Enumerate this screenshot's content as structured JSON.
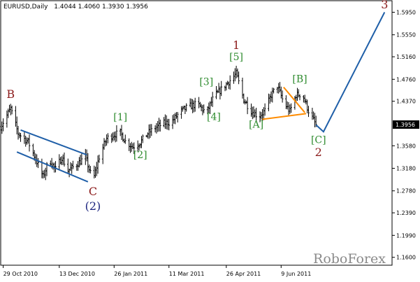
{
  "header": {
    "symbol": "EURUSD,Daily",
    "ohlc": "1.4044 1.4060 1.3930 1.3956"
  },
  "watermark": "RoboForex",
  "colors": {
    "bars": "#000000",
    "wave_major": "#8b1a1a",
    "wave_minor": "#2e8b2e",
    "wave_intermediate": "#1a237e",
    "trendline": "#1f5fa8",
    "triangle": "#ff8c00",
    "price_box": "#000000"
  },
  "chart_data": {
    "type": "ohlc",
    "xlabel": "",
    "ylabel": "",
    "ylim": [
      1.146,
      1.6155
    ],
    "x_range": [
      "2010-10-27",
      "2011-09-06"
    ],
    "price_axis_ticks": [
      "1.5950",
      "1.5550",
      "1.5160",
      "1.4760",
      "1.4370",
      "1.3580",
      "1.3180",
      "1.2780",
      "1.2390",
      "1.1990",
      "1.1600"
    ],
    "current_price": "1.3956",
    "date_ticks": [
      {
        "label": "29 Oct 2010",
        "date": "2010-10-29"
      },
      {
        "label": "13 Dec 2010",
        "date": "2010-12-13"
      },
      {
        "label": "26 Jan 2011",
        "date": "2011-01-26"
      },
      {
        "label": "11 Mar 2011",
        "date": "2011-03-11"
      },
      {
        "label": "26 Apr 2011",
        "date": "2011-04-26"
      },
      {
        "label": "9 Jun 2011",
        "date": "2011-06-09"
      }
    ],
    "price_path": [
      [
        "2010-10-27",
        1.392
      ],
      [
        "2010-11-04",
        1.424
      ],
      [
        "2010-11-10",
        1.38
      ],
      [
        "2010-11-18",
        1.365
      ],
      [
        "2010-11-23",
        1.34
      ],
      [
        "2010-11-30",
        1.303
      ],
      [
        "2010-12-05",
        1.334
      ],
      [
        "2010-12-10",
        1.316
      ],
      [
        "2010-12-15",
        1.338
      ],
      [
        "2010-12-20",
        1.314
      ],
      [
        "2010-12-24",
        1.32
      ],
      [
        "2011-01-03",
        1.338
      ],
      [
        "2011-01-09",
        1.295
      ],
      [
        "2011-01-14",
        1.338
      ],
      [
        "2011-01-20",
        1.371
      ],
      [
        "2011-01-26",
        1.378
      ],
      [
        "2011-01-31",
        1.381
      ],
      [
        "2011-02-04",
        1.366
      ],
      [
        "2011-02-10",
        1.356
      ],
      [
        "2011-02-16",
        1.364
      ],
      [
        "2011-02-22",
        1.38
      ],
      [
        "2011-02-28",
        1.39
      ],
      [
        "2011-03-07",
        1.398
      ],
      [
        "2011-03-13",
        1.4
      ],
      [
        "2011-03-20",
        1.418
      ],
      [
        "2011-03-27",
        1.428
      ],
      [
        "2011-04-03",
        1.432
      ],
      [
        "2011-04-10",
        1.416
      ],
      [
        "2011-04-16",
        1.445
      ],
      [
        "2011-04-22",
        1.458
      ],
      [
        "2011-04-29",
        1.474
      ],
      [
        "2011-05-04",
        1.486
      ],
      [
        "2011-05-10",
        1.44
      ],
      [
        "2011-05-16",
        1.42
      ],
      [
        "2011-05-22",
        1.41
      ],
      [
        "2011-05-27",
        1.42
      ],
      [
        "2011-06-01",
        1.448
      ],
      [
        "2011-06-06",
        1.464
      ],
      [
        "2011-06-11",
        1.435
      ],
      [
        "2011-06-16",
        1.419
      ],
      [
        "2011-06-21",
        1.448
      ],
      [
        "2011-06-26",
        1.45
      ],
      [
        "2011-07-01",
        1.42
      ],
      [
        "2011-07-07",
        1.395
      ]
    ],
    "wave_labels": [
      {
        "text": "B",
        "date": "2010-11-04",
        "price": 1.4426,
        "style": "major"
      },
      {
        "text": "C",
        "date": "2011-01-09",
        "price": 1.27,
        "style": "major"
      },
      {
        "text": "(2)",
        "date": "2011-01-09",
        "price": 1.244,
        "style": "intermediate"
      },
      {
        "text": "[1]",
        "date": "2011-01-31",
        "price": 1.403,
        "style": "minor"
      },
      {
        "text": "[2]",
        "date": "2011-02-16",
        "price": 1.336,
        "style": "minor"
      },
      {
        "text": "[3]",
        "date": "2011-04-10",
        "price": 1.466,
        "style": "minor"
      },
      {
        "text": "[4]",
        "date": "2011-04-16",
        "price": 1.404,
        "style": "minor"
      },
      {
        "text": "1",
        "date": "2011-05-04",
        "price": 1.53,
        "style": "major"
      },
      {
        "text": "[5]",
        "date": "2011-05-04",
        "price": 1.51,
        "style": "minor"
      },
      {
        "text": "[A]",
        "date": "2011-05-20",
        "price": 1.39,
        "style": "minor"
      },
      {
        "text": "[B]",
        "date": "2011-06-24",
        "price": 1.471,
        "style": "minor"
      },
      {
        "text": "[C]",
        "date": "2011-07-09",
        "price": 1.363,
        "style": "minor"
      },
      {
        "text": "2",
        "date": "2011-07-09",
        "price": 1.34,
        "style": "major"
      },
      {
        "text": "3",
        "date": "2011-08-31",
        "price": 1.602,
        "style": "major"
      }
    ],
    "channel_lines": [
      {
        "from": [
          "2010-11-12",
          1.386
        ],
        "to": [
          "2011-01-04",
          1.342
        ]
      },
      {
        "from": [
          "2010-11-09",
          1.347
        ],
        "to": [
          "2011-01-05",
          1.294
        ]
      }
    ],
    "triangle_lines": [
      {
        "from": [
          "2011-05-25",
          1.405
        ],
        "to": [
          "2011-06-29",
          1.415
        ]
      },
      {
        "from": [
          "2011-06-11",
          1.462
        ],
        "to": [
          "2011-06-28",
          1.417
        ]
      }
    ],
    "forecast_path": [
      [
        "2011-07-07",
        1.395
      ],
      [
        "2011-07-13",
        1.383
      ],
      [
        "2011-08-31",
        1.595
      ]
    ]
  }
}
